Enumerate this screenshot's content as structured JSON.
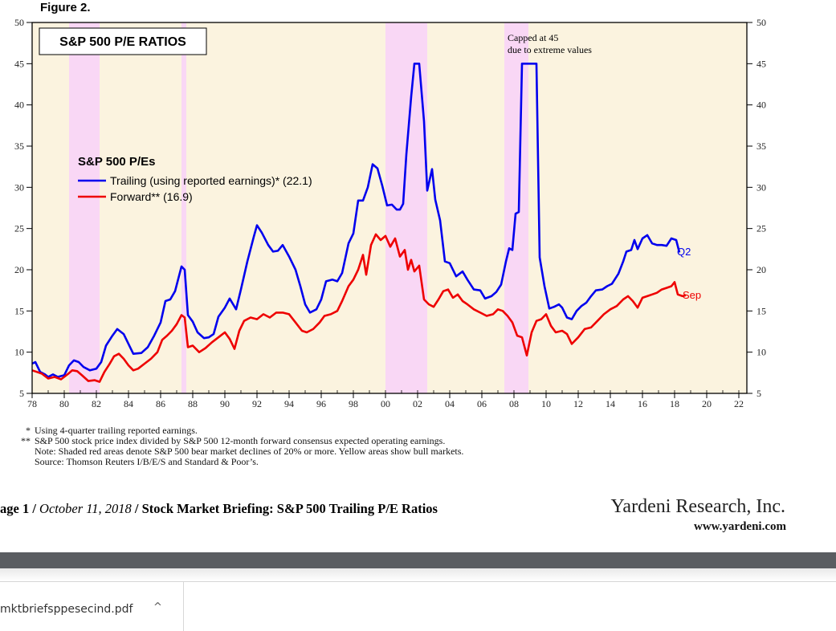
{
  "figure_label": "Figure 2.",
  "chart_data": {
    "type": "line",
    "title": "S&P 500 P/E RATIOS",
    "legend_title": "S&P 500 P/Es",
    "legend_placement": "upper-left",
    "ylim": [
      5,
      50
    ],
    "y_ticks": [
      5,
      10,
      15,
      20,
      25,
      30,
      35,
      40,
      45,
      50
    ],
    "y_tick_labels": [
      "5",
      "10",
      "15",
      "20",
      "25",
      "30",
      "35",
      "40",
      "45",
      "50"
    ],
    "xlim": [
      1978,
      2022.5
    ],
    "x_ticks": [
      1978,
      1980,
      1982,
      1984,
      1986,
      1988,
      1990,
      1992,
      1994,
      1996,
      1998,
      2000,
      2002,
      2004,
      2006,
      2008,
      2010,
      2012,
      2014,
      2016,
      2018,
      2020,
      2022
    ],
    "x_tick_labels": [
      "78",
      "80",
      "82",
      "84",
      "86",
      "88",
      "90",
      "92",
      "94",
      "96",
      "98",
      "00",
      "02",
      "04",
      "06",
      "08",
      "10",
      "12",
      "14",
      "16",
      "18",
      "20",
      "22"
    ],
    "bear_markets": [
      [
        1980.3,
        1982.2
      ],
      [
        1987.3,
        1987.6
      ],
      [
        2000.0,
        2002.6
      ],
      [
        2007.4,
        2008.9
      ]
    ],
    "bull_market_color": "#fbf3df",
    "bear_market_color": "#f9d7f5",
    "series": [
      {
        "name": "Trailing (using reported earnings)* (22.1)",
        "color": "#0000ee",
        "end_label": "Q2",
        "points": [
          [
            1978.0,
            8.6
          ],
          [
            1978.2,
            8.8
          ],
          [
            1978.5,
            7.6
          ],
          [
            1978.8,
            7.3
          ],
          [
            1979.0,
            7.0
          ],
          [
            1979.3,
            7.3
          ],
          [
            1979.6,
            7.0
          ],
          [
            1980.0,
            7.2
          ],
          [
            1980.3,
            8.4
          ],
          [
            1980.6,
            9.0
          ],
          [
            1980.9,
            8.8
          ],
          [
            1981.2,
            8.2
          ],
          [
            1981.6,
            7.8
          ],
          [
            1982.0,
            8.0
          ],
          [
            1982.3,
            8.8
          ],
          [
            1982.6,
            10.8
          ],
          [
            1983.0,
            12.0
          ],
          [
            1983.3,
            12.8
          ],
          [
            1983.7,
            12.2
          ],
          [
            1984.0,
            11.0
          ],
          [
            1984.3,
            9.8
          ],
          [
            1984.8,
            9.9
          ],
          [
            1985.2,
            10.6
          ],
          [
            1985.6,
            12.0
          ],
          [
            1986.0,
            13.6
          ],
          [
            1986.3,
            16.2
          ],
          [
            1986.6,
            16.4
          ],
          [
            1986.9,
            17.4
          ],
          [
            1987.3,
            20.4
          ],
          [
            1987.5,
            20.0
          ],
          [
            1987.7,
            14.5
          ],
          [
            1988.0,
            13.7
          ],
          [
            1988.3,
            12.4
          ],
          [
            1988.7,
            11.7
          ],
          [
            1989.0,
            11.8
          ],
          [
            1989.3,
            12.2
          ],
          [
            1989.6,
            14.3
          ],
          [
            1990.0,
            15.4
          ],
          [
            1990.3,
            16.5
          ],
          [
            1990.7,
            15.2
          ],
          [
            1991.0,
            17.6
          ],
          [
            1991.4,
            21.0
          ],
          [
            1991.8,
            24.0
          ],
          [
            1992.0,
            25.4
          ],
          [
            1992.3,
            24.5
          ],
          [
            1992.7,
            23.0
          ],
          [
            1993.0,
            22.2
          ],
          [
            1993.3,
            22.3
          ],
          [
            1993.6,
            23.0
          ],
          [
            1994.0,
            21.6
          ],
          [
            1994.4,
            20.0
          ],
          [
            1994.7,
            18.0
          ],
          [
            1995.0,
            15.8
          ],
          [
            1995.3,
            14.8
          ],
          [
            1995.7,
            15.2
          ],
          [
            1996.0,
            16.4
          ],
          [
            1996.3,
            18.6
          ],
          [
            1996.7,
            18.8
          ],
          [
            1997.0,
            18.6
          ],
          [
            1997.3,
            19.6
          ],
          [
            1997.7,
            23.2
          ],
          [
            1998.0,
            24.4
          ],
          [
            1998.3,
            28.4
          ],
          [
            1998.6,
            28.4
          ],
          [
            1998.9,
            30.0
          ],
          [
            1999.2,
            32.8
          ],
          [
            1999.5,
            32.3
          ],
          [
            1999.8,
            30.2
          ],
          [
            2000.1,
            27.8
          ],
          [
            2000.4,
            27.9
          ],
          [
            2000.7,
            27.3
          ],
          [
            2000.9,
            27.3
          ],
          [
            2001.1,
            28.0
          ],
          [
            2001.3,
            34.0
          ],
          [
            2001.6,
            41.0
          ],
          [
            2001.8,
            45.0
          ],
          [
            2002.1,
            45.0
          ],
          [
            2002.4,
            38.0
          ],
          [
            2002.6,
            29.6
          ],
          [
            2002.9,
            32.2
          ],
          [
            2003.1,
            28.5
          ],
          [
            2003.4,
            26.0
          ],
          [
            2003.7,
            21.0
          ],
          [
            2004.0,
            20.8
          ],
          [
            2004.4,
            19.2
          ],
          [
            2004.8,
            19.8
          ],
          [
            2005.1,
            18.8
          ],
          [
            2005.5,
            17.6
          ],
          [
            2005.9,
            17.5
          ],
          [
            2006.2,
            16.5
          ],
          [
            2006.6,
            16.8
          ],
          [
            2006.9,
            17.3
          ],
          [
            2007.2,
            18.2
          ],
          [
            2007.5,
            21.0
          ],
          [
            2007.7,
            22.6
          ],
          [
            2007.9,
            22.4
          ],
          [
            2008.1,
            26.8
          ],
          [
            2008.3,
            27.0
          ],
          [
            2008.5,
            45.0
          ],
          [
            2008.8,
            45.0
          ],
          [
            2009.1,
            45.0
          ],
          [
            2009.4,
            45.0
          ],
          [
            2009.6,
            21.5
          ],
          [
            2009.9,
            18.0
          ],
          [
            2010.2,
            15.3
          ],
          [
            2010.5,
            15.5
          ],
          [
            2010.8,
            15.8
          ],
          [
            2011.0,
            15.4
          ],
          [
            2011.3,
            14.2
          ],
          [
            2011.6,
            14.0
          ],
          [
            2011.9,
            15.0
          ],
          [
            2012.2,
            15.6
          ],
          [
            2012.5,
            16.0
          ],
          [
            2012.8,
            16.8
          ],
          [
            2013.1,
            17.5
          ],
          [
            2013.5,
            17.6
          ],
          [
            2013.8,
            18.0
          ],
          [
            2014.1,
            18.3
          ],
          [
            2014.5,
            19.5
          ],
          [
            2014.8,
            21.0
          ],
          [
            2015.0,
            22.2
          ],
          [
            2015.3,
            22.4
          ],
          [
            2015.5,
            23.6
          ],
          [
            2015.7,
            22.5
          ],
          [
            2016.0,
            23.8
          ],
          [
            2016.3,
            24.2
          ],
          [
            2016.6,
            23.2
          ],
          [
            2016.9,
            23.0
          ],
          [
            2017.2,
            23.0
          ],
          [
            2017.5,
            22.9
          ],
          [
            2017.8,
            23.8
          ],
          [
            2018.1,
            23.6
          ],
          [
            2018.3,
            22.1
          ]
        ]
      },
      {
        "name": "Forward** (16.9)",
        "color": "#ee0000",
        "end_label": "Sep",
        "points": [
          [
            1978.0,
            7.8
          ],
          [
            1978.3,
            7.6
          ],
          [
            1978.6,
            7.4
          ],
          [
            1979.0,
            6.8
          ],
          [
            1979.4,
            7.0
          ],
          [
            1979.8,
            6.7
          ],
          [
            1980.2,
            7.3
          ],
          [
            1980.5,
            7.8
          ],
          [
            1980.8,
            7.7
          ],
          [
            1981.1,
            7.2
          ],
          [
            1981.5,
            6.5
          ],
          [
            1981.9,
            6.6
          ],
          [
            1982.2,
            6.4
          ],
          [
            1982.5,
            7.6
          ],
          [
            1982.8,
            8.5
          ],
          [
            1983.1,
            9.5
          ],
          [
            1983.4,
            9.8
          ],
          [
            1983.7,
            9.2
          ],
          [
            1984.0,
            8.4
          ],
          [
            1984.3,
            7.8
          ],
          [
            1984.6,
            8.0
          ],
          [
            1985.0,
            8.6
          ],
          [
            1985.4,
            9.2
          ],
          [
            1985.8,
            10.0
          ],
          [
            1986.1,
            11.5
          ],
          [
            1986.4,
            12.0
          ],
          [
            1986.7,
            12.6
          ],
          [
            1987.0,
            13.4
          ],
          [
            1987.3,
            14.5
          ],
          [
            1987.5,
            14.2
          ],
          [
            1987.7,
            10.6
          ],
          [
            1988.0,
            10.8
          ],
          [
            1988.4,
            10.0
          ],
          [
            1988.8,
            10.5
          ],
          [
            1989.2,
            11.2
          ],
          [
            1989.6,
            11.8
          ],
          [
            1990.0,
            12.4
          ],
          [
            1990.3,
            11.6
          ],
          [
            1990.6,
            10.4
          ],
          [
            1990.9,
            12.6
          ],
          [
            1991.2,
            13.8
          ],
          [
            1991.6,
            14.2
          ],
          [
            1992.0,
            14.0
          ],
          [
            1992.4,
            14.6
          ],
          [
            1992.8,
            14.2
          ],
          [
            1993.2,
            14.8
          ],
          [
            1993.6,
            14.8
          ],
          [
            1994.0,
            14.6
          ],
          [
            1994.4,
            13.6
          ],
          [
            1994.8,
            12.6
          ],
          [
            1995.1,
            12.4
          ],
          [
            1995.5,
            12.8
          ],
          [
            1995.9,
            13.6
          ],
          [
            1996.2,
            14.4
          ],
          [
            1996.6,
            14.6
          ],
          [
            1997.0,
            15.0
          ],
          [
            1997.3,
            16.2
          ],
          [
            1997.7,
            18.0
          ],
          [
            1998.0,
            18.8
          ],
          [
            1998.3,
            20.0
          ],
          [
            1998.6,
            21.8
          ],
          [
            1998.8,
            19.4
          ],
          [
            1999.1,
            23.0
          ],
          [
            1999.4,
            24.3
          ],
          [
            1999.7,
            23.6
          ],
          [
            2000.0,
            24.1
          ],
          [
            2000.3,
            22.8
          ],
          [
            2000.6,
            23.8
          ],
          [
            2000.9,
            21.6
          ],
          [
            2001.2,
            22.4
          ],
          [
            2001.4,
            20.0
          ],
          [
            2001.6,
            21.2
          ],
          [
            2001.8,
            19.8
          ],
          [
            2002.1,
            20.5
          ],
          [
            2002.4,
            16.4
          ],
          [
            2002.7,
            15.8
          ],
          [
            2003.0,
            15.5
          ],
          [
            2003.3,
            16.4
          ],
          [
            2003.6,
            17.4
          ],
          [
            2003.9,
            17.6
          ],
          [
            2004.2,
            16.6
          ],
          [
            2004.5,
            17.0
          ],
          [
            2004.8,
            16.2
          ],
          [
            2005.1,
            15.8
          ],
          [
            2005.5,
            15.2
          ],
          [
            2005.9,
            14.8
          ],
          [
            2006.3,
            14.4
          ],
          [
            2006.7,
            14.6
          ],
          [
            2007.0,
            15.2
          ],
          [
            2007.3,
            15.0
          ],
          [
            2007.6,
            14.4
          ],
          [
            2007.9,
            13.6
          ],
          [
            2008.2,
            12.0
          ],
          [
            2008.5,
            11.8
          ],
          [
            2008.8,
            9.6
          ],
          [
            2009.1,
            12.4
          ],
          [
            2009.4,
            13.8
          ],
          [
            2009.7,
            14.0
          ],
          [
            2010.0,
            14.6
          ],
          [
            2010.3,
            13.2
          ],
          [
            2010.6,
            12.4
          ],
          [
            2011.0,
            12.6
          ],
          [
            2011.3,
            12.2
          ],
          [
            2011.6,
            11.0
          ],
          [
            2012.0,
            11.8
          ],
          [
            2012.4,
            12.8
          ],
          [
            2012.8,
            13.0
          ],
          [
            2013.2,
            13.8
          ],
          [
            2013.6,
            14.6
          ],
          [
            2014.0,
            15.2
          ],
          [
            2014.4,
            15.6
          ],
          [
            2014.8,
            16.4
          ],
          [
            2015.1,
            16.8
          ],
          [
            2015.4,
            16.2
          ],
          [
            2015.7,
            15.4
          ],
          [
            2016.0,
            16.6
          ],
          [
            2016.3,
            16.8
          ],
          [
            2016.6,
            17.0
          ],
          [
            2016.9,
            17.2
          ],
          [
            2017.2,
            17.6
          ],
          [
            2017.5,
            17.8
          ],
          [
            2017.8,
            18.0
          ],
          [
            2018.0,
            18.5
          ],
          [
            2018.2,
            17.0
          ],
          [
            2018.5,
            16.8
          ],
          [
            2018.7,
            16.9
          ]
        ]
      }
    ],
    "annotations": [
      "Capped at 45",
      "due to extreme values"
    ]
  },
  "footnotes": [
    {
      "marker": "*",
      "text": "Using 4-quarter trailing reported earnings."
    },
    {
      "marker": "**",
      "text": "S&P 500 stock price index divided by S&P 500 12-month forward consensus expected operating earnings."
    },
    {
      "marker": "",
      "text": "Note: Shaded red areas denote S&P 500 bear market declines of 20% or more. Yellow areas show bull markets."
    },
    {
      "marker": "",
      "text": "Source: Thomson Reuters I/B/E/S and Standard & Poor’s."
    }
  ],
  "page_line": {
    "page": "age 1",
    "sep1": " / ",
    "date": "October 11, 2018",
    "sep2": " / ",
    "title": " Stock Market Briefing: S&P 500 Trailing P/E Ratios"
  },
  "company": "Yardeni Research, Inc.",
  "website": "www.yardeni.com",
  "download_bar": {
    "filename": "mktbriefsppesecind.pdf",
    "caret": "^"
  }
}
